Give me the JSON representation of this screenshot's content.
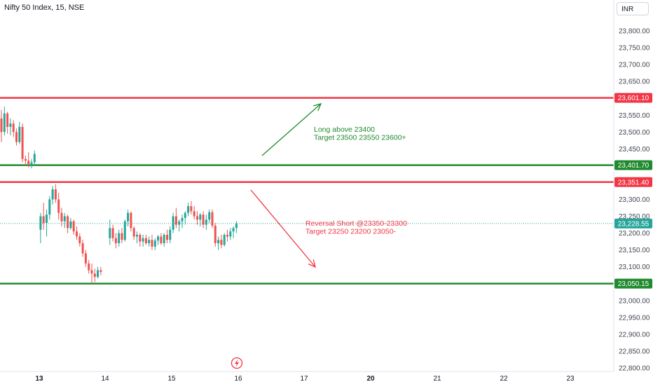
{
  "header": {
    "symbol_title": "Nifty 50 Index, 15, NSE",
    "currency": "INR"
  },
  "colors": {
    "up": "#26a69a",
    "down": "#ef5350",
    "red_line": "#f23645",
    "green_line": "#1f8a2e",
    "text": "#131722",
    "axis_text": "#434651",
    "last_price": "#26a69a"
  },
  "icons": {
    "event_marker": "lightning-icon"
  },
  "chart_data": {
    "type": "candlestick",
    "title": "Nifty 50 Index, 15, NSE",
    "y_axis": {
      "range": [
        22780,
        23840
      ],
      "tick_labels": [
        "23,800.00",
        "23,750.00",
        "23,700.00",
        "23,650.00",
        "23,600.00",
        "23,550.00",
        "23,500.00",
        "23,450.00",
        "23,400.00",
        "23,350.00",
        "23,300.00",
        "23,250.00",
        "23,200.00",
        "23,150.00",
        "23,100.00",
        "23,050.00",
        "23,000.00",
        "22,950.00",
        "22,900.00",
        "22,850.00",
        "22,800.00"
      ],
      "tick_values": [
        23800,
        23750,
        23700,
        23650,
        23600,
        23550,
        23500,
        23450,
        23400,
        23350,
        23300,
        23250,
        23200,
        23150,
        23100,
        23050,
        23000,
        22950,
        22900,
        22850,
        22800
      ]
    },
    "x_axis": {
      "labels": [
        {
          "label": "13",
          "bold": true
        },
        {
          "label": "14",
          "bold": false
        },
        {
          "label": "15",
          "bold": false
        },
        {
          "label": "16",
          "bold": false
        },
        {
          "label": "17",
          "bold": false
        },
        {
          "label": "20",
          "bold": true
        },
        {
          "label": "21",
          "bold": false
        },
        {
          "label": "22",
          "bold": false
        },
        {
          "label": "23",
          "bold": false
        }
      ]
    },
    "horizontal_lines": [
      {
        "value": 23601.1,
        "label": "23,601.10",
        "color": "red"
      },
      {
        "value": 23401.7,
        "label": "23,401.70",
        "color": "green"
      },
      {
        "value": 23351.4,
        "label": "23,351.40",
        "color": "red"
      },
      {
        "value": 23050.15,
        "label": "23,050.15",
        "color": "green"
      }
    ],
    "last_price": {
      "value": 23228.55,
      "label": "23,228.55"
    },
    "annotations": [
      {
        "lines": [
          "Long above 23400",
          "Target 23500 23550 23600+"
        ],
        "color": "green"
      },
      {
        "lines": [
          "Reversal Short @23350-23300",
          "Target 23250 23200 23050-"
        ],
        "color": "red"
      }
    ],
    "candles": [
      {
        "t": 0,
        "o": 23540,
        "h": 23565,
        "l": 23470,
        "c": 23500
      },
      {
        "t": 1,
        "o": 23500,
        "h": 23575,
        "l": 23490,
        "c": 23555
      },
      {
        "t": 2,
        "o": 23555,
        "h": 23560,
        "l": 23495,
        "c": 23515
      },
      {
        "t": 3,
        "o": 23515,
        "h": 23540,
        "l": 23490,
        "c": 23525
      },
      {
        "t": 4,
        "o": 23525,
        "h": 23535,
        "l": 23485,
        "c": 23500
      },
      {
        "t": 5,
        "o": 23500,
        "h": 23510,
        "l": 23460,
        "c": 23470
      },
      {
        "t": 6,
        "o": 23470,
        "h": 23530,
        "l": 23465,
        "c": 23515
      },
      {
        "t": 7,
        "o": 23515,
        "h": 23525,
        "l": 23410,
        "c": 23420
      },
      {
        "t": 8,
        "o": 23420,
        "h": 23430,
        "l": 23400,
        "c": 23415
      },
      {
        "t": 9,
        "o": 23415,
        "h": 23440,
        "l": 23395,
        "c": 23405
      },
      {
        "t": 10,
        "o": 23405,
        "h": 23420,
        "l": 23392,
        "c": 23410
      },
      {
        "t": 11,
        "o": 23410,
        "h": 23445,
        "l": 23400,
        "c": 23435
      },
      {
        "t": 13,
        "o": 23210,
        "h": 23260,
        "l": 23170,
        "c": 23250
      },
      {
        "t": 14,
        "o": 23250,
        "h": 23290,
        "l": 23210,
        "c": 23230
      },
      {
        "t": 15,
        "o": 23230,
        "h": 23270,
        "l": 23190,
        "c": 23255
      },
      {
        "t": 16,
        "o": 23255,
        "h": 23310,
        "l": 23240,
        "c": 23300
      },
      {
        "t": 17,
        "o": 23300,
        "h": 23340,
        "l": 23285,
        "c": 23330
      },
      {
        "t": 18,
        "o": 23330,
        "h": 23345,
        "l": 23290,
        "c": 23300
      },
      {
        "t": 19,
        "o": 23300,
        "h": 23320,
        "l": 23240,
        "c": 23260
      },
      {
        "t": 20,
        "o": 23260,
        "h": 23275,
        "l": 23220,
        "c": 23235
      },
      {
        "t": 21,
        "o": 23235,
        "h": 23260,
        "l": 23215,
        "c": 23250
      },
      {
        "t": 22,
        "o": 23250,
        "h": 23255,
        "l": 23200,
        "c": 23215
      },
      {
        "t": 23,
        "o": 23215,
        "h": 23245,
        "l": 23210,
        "c": 23235
      },
      {
        "t": 24,
        "o": 23235,
        "h": 23240,
        "l": 23195,
        "c": 23205
      },
      {
        "t": 25,
        "o": 23205,
        "h": 23220,
        "l": 23180,
        "c": 23190
      },
      {
        "t": 26,
        "o": 23190,
        "h": 23200,
        "l": 23160,
        "c": 23170
      },
      {
        "t": 27,
        "o": 23170,
        "h": 23180,
        "l": 23130,
        "c": 23140
      },
      {
        "t": 28,
        "o": 23140,
        "h": 23150,
        "l": 23100,
        "c": 23110
      },
      {
        "t": 29,
        "o": 23110,
        "h": 23120,
        "l": 23080,
        "c": 23090
      },
      {
        "t": 30,
        "o": 23090,
        "h": 23110,
        "l": 23050,
        "c": 23080
      },
      {
        "t": 31,
        "o": 23080,
        "h": 23095,
        "l": 23055,
        "c": 23070
      },
      {
        "t": 32,
        "o": 23070,
        "h": 23100,
        "l": 23065,
        "c": 23090
      },
      {
        "t": 33,
        "o": 23090,
        "h": 23100,
        "l": 23075,
        "c": 23085
      },
      {
        "t": 36,
        "o": 23185,
        "h": 23240,
        "l": 23165,
        "c": 23215
      },
      {
        "t": 37,
        "o": 23215,
        "h": 23225,
        "l": 23175,
        "c": 23185
      },
      {
        "t": 38,
        "o": 23185,
        "h": 23200,
        "l": 23155,
        "c": 23170
      },
      {
        "t": 39,
        "o": 23170,
        "h": 23210,
        "l": 23160,
        "c": 23200
      },
      {
        "t": 40,
        "o": 23200,
        "h": 23215,
        "l": 23170,
        "c": 23180
      },
      {
        "t": 41,
        "o": 23180,
        "h": 23240,
        "l": 23175,
        "c": 23235
      },
      {
        "t": 42,
        "o": 23235,
        "h": 23270,
        "l": 23220,
        "c": 23260
      },
      {
        "t": 43,
        "o": 23260,
        "h": 23265,
        "l": 23205,
        "c": 23215
      },
      {
        "t": 44,
        "o": 23215,
        "h": 23220,
        "l": 23180,
        "c": 23190
      },
      {
        "t": 45,
        "o": 23190,
        "h": 23205,
        "l": 23170,
        "c": 23195
      },
      {
        "t": 46,
        "o": 23195,
        "h": 23200,
        "l": 23160,
        "c": 23175
      },
      {
        "t": 47,
        "o": 23175,
        "h": 23195,
        "l": 23160,
        "c": 23185
      },
      {
        "t": 48,
        "o": 23185,
        "h": 23195,
        "l": 23165,
        "c": 23170
      },
      {
        "t": 49,
        "o": 23170,
        "h": 23190,
        "l": 23160,
        "c": 23180
      },
      {
        "t": 50,
        "o": 23180,
        "h": 23195,
        "l": 23150,
        "c": 23160
      },
      {
        "t": 51,
        "o": 23160,
        "h": 23185,
        "l": 23150,
        "c": 23178
      },
      {
        "t": 52,
        "o": 23178,
        "h": 23195,
        "l": 23165,
        "c": 23190
      },
      {
        "t": 53,
        "o": 23190,
        "h": 23200,
        "l": 23165,
        "c": 23170
      },
      {
        "t": 54,
        "o": 23170,
        "h": 23200,
        "l": 23160,
        "c": 23195
      },
      {
        "t": 55,
        "o": 23195,
        "h": 23210,
        "l": 23170,
        "c": 23180
      },
      {
        "t": 56,
        "o": 23180,
        "h": 23220,
        "l": 23170,
        "c": 23210
      },
      {
        "t": 57,
        "o": 23210,
        "h": 23260,
        "l": 23200,
        "c": 23250
      },
      {
        "t": 58,
        "o": 23250,
        "h": 23275,
        "l": 23215,
        "c": 23225
      },
      {
        "t": 59,
        "o": 23225,
        "h": 23240,
        "l": 23205,
        "c": 23235
      },
      {
        "t": 60,
        "o": 23235,
        "h": 23255,
        "l": 23215,
        "c": 23245
      },
      {
        "t": 61,
        "o": 23245,
        "h": 23265,
        "l": 23225,
        "c": 23260
      },
      {
        "t": 62,
        "o": 23260,
        "h": 23290,
        "l": 23250,
        "c": 23280
      },
      {
        "t": 63,
        "o": 23280,
        "h": 23295,
        "l": 23255,
        "c": 23265
      },
      {
        "t": 64,
        "o": 23265,
        "h": 23280,
        "l": 23240,
        "c": 23250
      },
      {
        "t": 65,
        "o": 23250,
        "h": 23265,
        "l": 23225,
        "c": 23240
      },
      {
        "t": 66,
        "o": 23240,
        "h": 23260,
        "l": 23220,
        "c": 23255
      },
      {
        "t": 67,
        "o": 23255,
        "h": 23265,
        "l": 23215,
        "c": 23225
      },
      {
        "t": 68,
        "o": 23225,
        "h": 23255,
        "l": 23210,
        "c": 23240
      },
      {
        "t": 69,
        "o": 23240,
        "h": 23270,
        "l": 23230,
        "c": 23262
      },
      {
        "t": 70,
        "o": 23262,
        "h": 23270,
        "l": 23215,
        "c": 23222
      },
      {
        "t": 71,
        "o": 23222,
        "h": 23230,
        "l": 23160,
        "c": 23170
      },
      {
        "t": 72,
        "o": 23170,
        "h": 23190,
        "l": 23150,
        "c": 23180
      },
      {
        "t": 73,
        "o": 23180,
        "h": 23195,
        "l": 23155,
        "c": 23165
      },
      {
        "t": 74,
        "o": 23165,
        "h": 23200,
        "l": 23160,
        "c": 23195
      },
      {
        "t": 75,
        "o": 23195,
        "h": 23210,
        "l": 23175,
        "c": 23190
      },
      {
        "t": 76,
        "o": 23190,
        "h": 23215,
        "l": 23180,
        "c": 23205
      },
      {
        "t": 77,
        "o": 23205,
        "h": 23220,
        "l": 23185,
        "c": 23215
      },
      {
        "t": 78,
        "o": 23215,
        "h": 23235,
        "l": 23200,
        "c": 23228
      }
    ]
  }
}
